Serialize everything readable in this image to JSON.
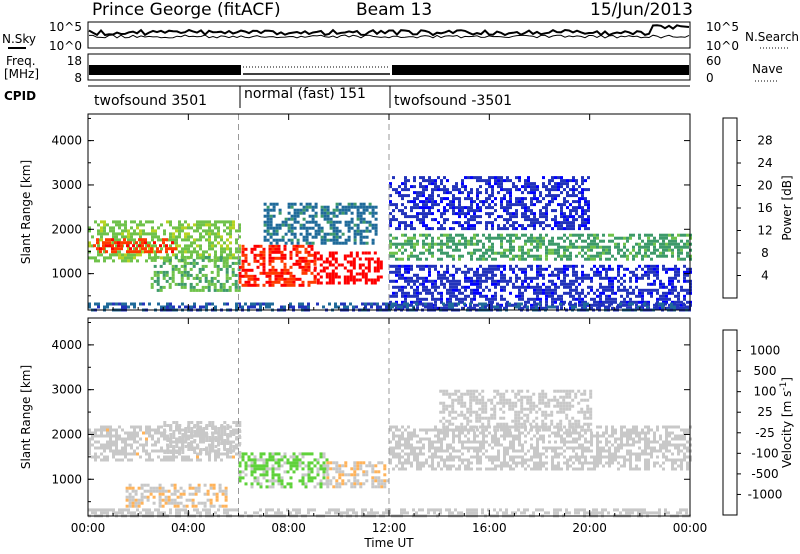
{
  "header": {
    "station": "Prince George (fitACF)",
    "beam": "Beam 13",
    "date": "15/Jun/2013"
  },
  "top_strip": {
    "left_label": "N.Sky",
    "right_label": "N.Search",
    "left_ticks": [
      "10^5",
      "10^0"
    ],
    "right_ticks": [
      "10^5",
      "10^0"
    ]
  },
  "freq_strip": {
    "left_label_line1": "Freq.",
    "left_label_line2": "[MHz]",
    "right_label": "Nave",
    "left_ticks": [
      "18",
      "8"
    ],
    "right_ticks": [
      "60",
      "0"
    ]
  },
  "cpid": {
    "label": "CPID",
    "segments": [
      {
        "label": "twofsound 3501",
        "start_hour": 0,
        "end_hour": 6
      },
      {
        "label": "normal (fast) 151",
        "start_hour": 6,
        "end_hour": 12
      },
      {
        "label": "twofsound -3501",
        "start_hour": 12,
        "end_hour": 24
      }
    ]
  },
  "colors": {
    "power_scale": [
      "#0000ff",
      "#2233bb",
      "#1f6a9a",
      "#3d9a6a",
      "#6fc24a",
      "#b5d321",
      "#ffb000",
      "#ff7d00",
      "#ff3a00",
      "#ff0000"
    ],
    "velocity_scale": [
      "#ff0000",
      "#ff4000",
      "#ff8a00",
      "#ffb35a",
      "#c8c8c8",
      "#c8c8c8",
      "#5fd23a",
      "#2f9a4e",
      "#2a6cb8",
      "#1a2ec8"
    ]
  },
  "chart_data": [
    {
      "type": "heatmap",
      "title": "",
      "xlabel": "Time UT",
      "ylabel": "Slant Range [km]",
      "x_ticks": [
        "00:00",
        "04:00",
        "08:00",
        "12:00",
        "16:00",
        "20:00",
        "00:00"
      ],
      "xlim_hours": [
        0,
        24
      ],
      "y_ticks": [
        "1000",
        "2000",
        "3000",
        "4000"
      ],
      "ylim_km": [
        180,
        4600
      ],
      "colorbar": {
        "label": "Power [dB]",
        "ticks": [
          "4",
          "8",
          "12",
          "16",
          "20",
          "24",
          "28"
        ],
        "range": [
          0,
          30
        ]
      },
      "echo_regions": [
        {
          "t0": 0.0,
          "t1": 6.0,
          "r0": 1300,
          "r1": 2200,
          "value": 14
        },
        {
          "t0": 0.2,
          "t1": 3.5,
          "r0": 1500,
          "r1": 1800,
          "value": 26
        },
        {
          "t0": 2.5,
          "t1": 6.0,
          "r0": 600,
          "r1": 1400,
          "value": 12
        },
        {
          "t0": 6.0,
          "t1": 9.0,
          "r0": 750,
          "r1": 1650,
          "value": 27
        },
        {
          "t0": 9.0,
          "t1": 11.7,
          "r0": 800,
          "r1": 1500,
          "value": 29
        },
        {
          "t0": 7.0,
          "t1": 11.5,
          "r0": 1700,
          "r1": 2600,
          "value": 8
        },
        {
          "t0": 12.0,
          "t1": 24.0,
          "r0": 1300,
          "r1": 1900,
          "value": 11
        },
        {
          "t0": 12.0,
          "t1": 20.0,
          "r0": 2000,
          "r1": 3200,
          "value": 4
        },
        {
          "t0": 12.0,
          "t1": 24.0,
          "r0": 200,
          "r1": 1200,
          "value": 4
        },
        {
          "t0": 0.0,
          "t1": 24.0,
          "r0": 180,
          "r1": 350,
          "value": 6
        }
      ]
    },
    {
      "type": "heatmap",
      "title": "",
      "xlabel": "Time UT",
      "ylabel": "Slant Range [km]",
      "x_ticks": [
        "00:00",
        "04:00",
        "08:00",
        "12:00",
        "16:00",
        "20:00",
        "00:00"
      ],
      "xlim_hours": [
        0,
        24
      ],
      "y_ticks": [
        "1000",
        "2000",
        "3000",
        "4000"
      ],
      "ylim_km": [
        180,
        4600
      ],
      "colorbar": {
        "label": "Velocity [m s",
        "label_superscript": "-1",
        "label_close": "]",
        "ticks": [
          "-1000",
          "-500",
          "-100",
          "-25",
          "25",
          "100",
          "500",
          "1000"
        ],
        "range": [
          -1200,
          1200
        ]
      },
      "echo_regions": [
        {
          "t0": 0.0,
          "t1": 6.0,
          "r0": 1400,
          "r1": 2200,
          "value": -100
        },
        {
          "t0": 3.0,
          "t1": 6.0,
          "r0": 1600,
          "r1": 2300,
          "value": 100
        },
        {
          "t0": 1.5,
          "t1": 5.5,
          "r0": 400,
          "r1": 900,
          "value": -200
        },
        {
          "t0": 6.0,
          "t1": 9.5,
          "r0": 800,
          "r1": 1600,
          "value": 300
        },
        {
          "t0": 9.5,
          "t1": 12.0,
          "r0": 800,
          "r1": 1400,
          "value": -200
        },
        {
          "t0": 12.0,
          "t1": 24.0,
          "r0": 1200,
          "r1": 2200,
          "value": 0
        },
        {
          "t0": 14.0,
          "t1": 20.0,
          "r0": 2100,
          "r1": 3000,
          "value": 0
        },
        {
          "t0": 0.0,
          "t1": 24.0,
          "r0": 180,
          "r1": 350,
          "value": -20
        }
      ]
    }
  ]
}
